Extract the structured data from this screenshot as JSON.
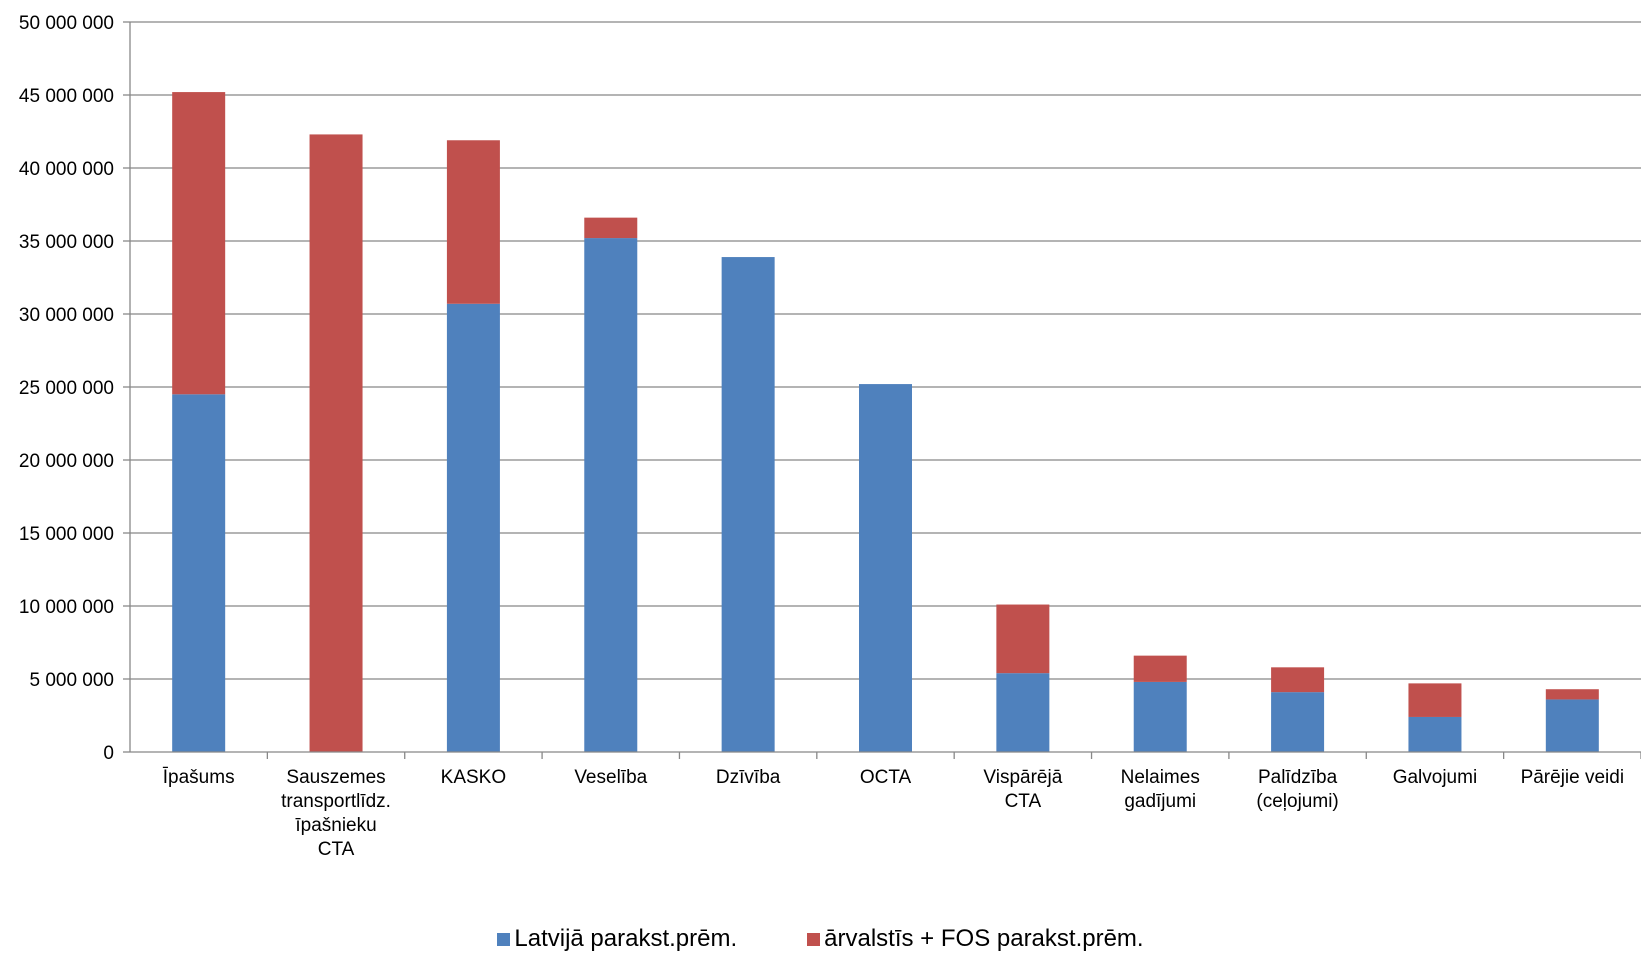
{
  "chart_data": {
    "type": "bar",
    "stacked": true,
    "categories": [
      [
        "Īpašums"
      ],
      [
        "Sauszemes",
        "transportlīdz.",
        "īpašnieku",
        "CTA"
      ],
      [
        "KASKO"
      ],
      [
        "Veselība"
      ],
      [
        "Dzīvība"
      ],
      [
        "OCTA"
      ],
      [
        "Vispārējā",
        "CTA"
      ],
      [
        "Nelaimes",
        "gadījumi"
      ],
      [
        "Palīdzība",
        "(ceļojumi)"
      ],
      [
        "Galvojumi"
      ],
      [
        "Pārējie veidi"
      ]
    ],
    "series": [
      {
        "name": "Latvijā parakst.prēm.",
        "color": "#4F81BD",
        "values": [
          24500000,
          0,
          30700000,
          35200000,
          33900000,
          25200000,
          5400000,
          4800000,
          4100000,
          2400000,
          3600000
        ]
      },
      {
        "name": "ārvalstīs + FOS parakst.prēm.",
        "color": "#C0504D",
        "values": [
          20700000,
          42300000,
          11200000,
          1400000,
          0,
          0,
          4700000,
          1800000,
          1700000,
          2300000,
          700000
        ]
      }
    ],
    "ylim": [
      0,
      50000000
    ],
    "yticks": [
      "0",
      "5 000 000",
      "10 000 000",
      "15 000 000",
      "20 000 000",
      "25 000 000",
      "30 000 000",
      "35 000 000",
      "40 000 000",
      "45 000 000",
      "50 000 000"
    ],
    "grid": true,
    "legend_position": "bottom"
  }
}
